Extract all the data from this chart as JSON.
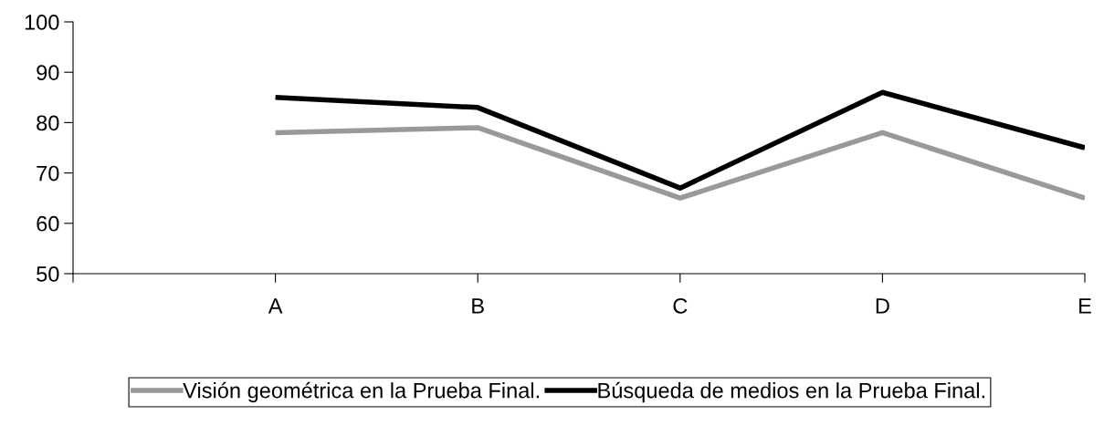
{
  "chart_data": {
    "type": "line",
    "categories": [
      null,
      "A",
      "B",
      "C",
      "D",
      "E"
    ],
    "series": [
      {
        "name": "Visión geométrica en la Prueba Final.",
        "color": "#999999",
        "values": [
          null,
          78,
          79,
          65,
          78,
          65
        ]
      },
      {
        "name": "Búsqueda de medios en la Prueba Final.",
        "color": "#000000",
        "values": [
          null,
          85,
          83,
          67,
          86,
          75
        ]
      }
    ],
    "ylim": [
      50,
      100
    ],
    "yticks": [
      50,
      60,
      70,
      80,
      90,
      100
    ],
    "grid": false,
    "legend": "bottom",
    "marker": "none",
    "line_style": "solid"
  }
}
